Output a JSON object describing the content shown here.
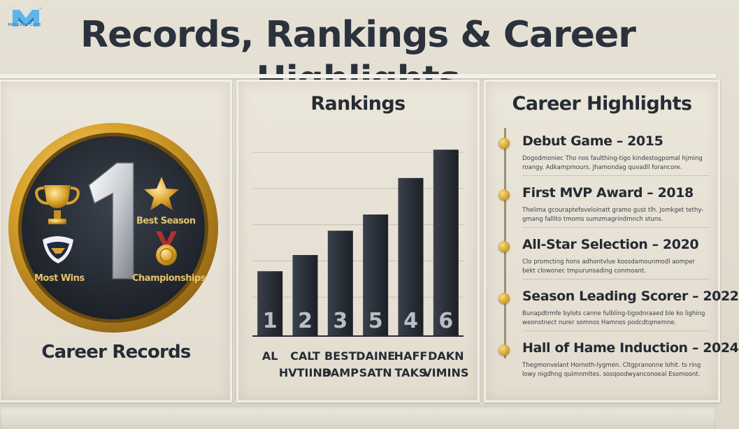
{
  "brand": {
    "name": "MEASURE CORE",
    "accent": "#3a8fd1"
  },
  "title": "Records, Rankings & Career Highlights",
  "colors": {
    "background": "#e6e1d5",
    "dark": "#262c35",
    "gold": "#d9a730",
    "bar": "#2c323b"
  },
  "career_records": {
    "caption": "Career Records",
    "badge_number": "1",
    "items": [
      {
        "label": "Best Season",
        "icon": "star-icon"
      },
      {
        "label": "Most Wins",
        "icon": "shield-logo-icon"
      },
      {
        "label": "Championships",
        "icon": "medal-icon"
      },
      {
        "label": "",
        "icon": "trophy-icon"
      }
    ]
  },
  "rankings": {
    "title": "Rankings",
    "chart_data": {
      "type": "bar",
      "title": "Rankings",
      "categories": [
        "AL",
        "CALT HVTIIND",
        "BEST BAMP",
        "DAINE SATN",
        "HAFF TAKS",
        "DAKN VIMINS"
      ],
      "values": [
        1.6,
        2.0,
        2.6,
        3.0,
        3.9,
        4.6
      ],
      "bar_numbers": [
        "1",
        "2",
        "3",
        "5",
        "4",
        "6"
      ],
      "ylim": [
        0,
        5
      ],
      "grid": true
    }
  },
  "highlights": {
    "title": "Career Highlights",
    "items": [
      {
        "heading": "Debut Game – 2015",
        "desc": "Dogodmoniec Tho nos faulthing-tigo kindestogpomal hjming roangy. Adkampmours. Jhamondag quvadll forancore."
      },
      {
        "heading": "First MVP Award – 2018",
        "desc": "Thelima gcouraptefoveloinatt gramo gust tlh. Jomkget tethy- gmang fallito tmoms sumzmagrindmnch stuns."
      },
      {
        "heading": "All-Star Selection – 2020",
        "desc": "Clo promcting hons adhontvlue koosdamounmodl aomper bekt clowonec tmpurunsading conmoant."
      },
      {
        "heading": "Season Leading Scorer – 2022",
        "desc": "Bunapdtrmfe bylots canne fulbling-tigodnraaed ble ko lighing weonstnect nurer somnos Hamnos podcdtqmemne."
      },
      {
        "heading": "Hall of Hame Induction – 2024",
        "desc": "Thegmonvelant Hornoth-lygmen. Cltgpranonne lohit. ts ring lowy nigdhng quimnmltes. sosqoodwyanconoeal Esomoont."
      }
    ]
  }
}
